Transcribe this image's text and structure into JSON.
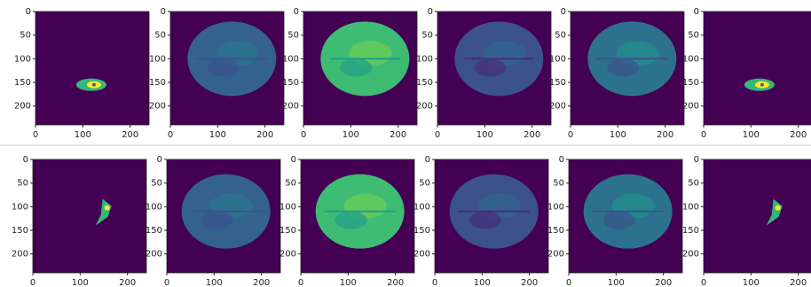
{
  "chart_data": [
    {
      "type": "image",
      "xlim": [
        0,
        240
      ],
      "ylim": [
        240,
        0
      ],
      "xticks": [
        0,
        100,
        200
      ],
      "yticks": [
        0,
        50,
        100,
        150,
        200
      ]
    },
    {
      "type": "image",
      "xlim": [
        0,
        240
      ],
      "ylim": [
        240,
        0
      ],
      "xticks": [
        0,
        100,
        200
      ],
      "yticks": [
        0,
        50,
        100,
        150,
        200
      ]
    },
    {
      "type": "image",
      "xlim": [
        0,
        240
      ],
      "ylim": [
        240,
        0
      ],
      "xticks": [
        0,
        100,
        200
      ],
      "yticks": [
        0,
        50,
        100,
        150,
        200
      ]
    },
    {
      "type": "image",
      "xlim": [
        0,
        240
      ],
      "ylim": [
        240,
        0
      ],
      "xticks": [
        0,
        100,
        200
      ],
      "yticks": [
        0,
        50,
        100,
        150,
        200
      ]
    },
    {
      "type": "image",
      "xlim": [
        0,
        240
      ],
      "ylim": [
        240,
        0
      ],
      "xticks": [
        0,
        100,
        200
      ],
      "yticks": [
        0,
        50,
        100,
        150,
        200
      ]
    },
    {
      "type": "image",
      "xlim": [
        0,
        240
      ],
      "ylim": [
        240,
        0
      ],
      "xticks": [
        0,
        100,
        200
      ],
      "yticks": [
        0,
        50,
        100,
        150,
        200
      ]
    },
    {
      "type": "image",
      "xlim": [
        0,
        240
      ],
      "ylim": [
        240,
        0
      ],
      "xticks": [
        0,
        100,
        200
      ],
      "yticks": [
        0,
        50,
        100,
        150,
        200
      ]
    },
    {
      "type": "image",
      "xlim": [
        0,
        240
      ],
      "ylim": [
        240,
        0
      ],
      "xticks": [
        0,
        100,
        200
      ],
      "yticks": [
        0,
        50,
        100,
        150,
        200
      ]
    },
    {
      "type": "image",
      "xlim": [
        0,
        240
      ],
      "ylim": [
        240,
        0
      ],
      "xticks": [
        0,
        100,
        200
      ],
      "yticks": [
        0,
        50,
        100,
        150,
        200
      ]
    },
    {
      "type": "image",
      "xlim": [
        0,
        240
      ],
      "ylim": [
        240,
        0
      ],
      "xticks": [
        0,
        100,
        200
      ],
      "yticks": [
        0,
        50,
        100,
        150,
        200
      ]
    },
    {
      "type": "image",
      "xlim": [
        0,
        240
      ],
      "ylim": [
        240,
        0
      ],
      "xticks": [
        0,
        100,
        200
      ],
      "yticks": [
        0,
        50,
        100,
        150,
        200
      ]
    },
    {
      "type": "image",
      "xlim": [
        0,
        240
      ],
      "ylim": [
        240,
        0
      ],
      "xticks": [
        0,
        100,
        200
      ],
      "yticks": [
        0,
        50,
        100,
        150,
        200
      ]
    }
  ]
}
